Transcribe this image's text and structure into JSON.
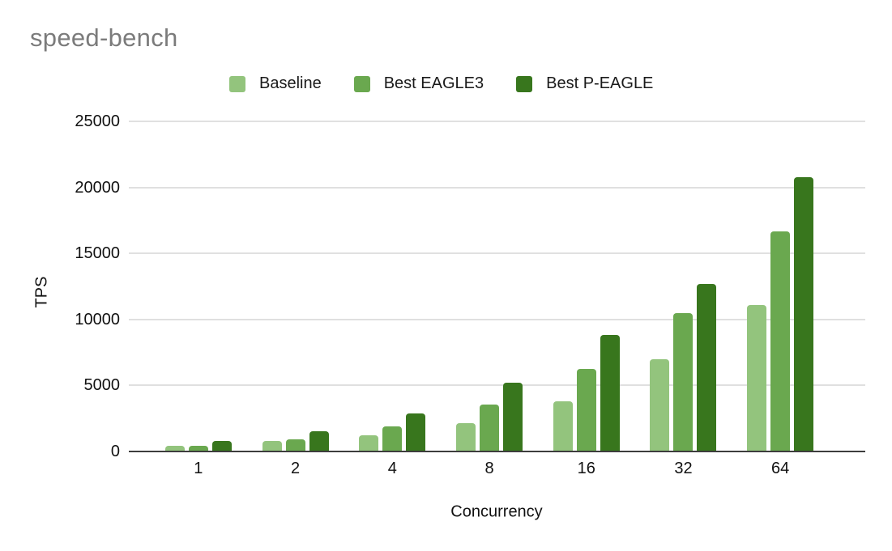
{
  "header": {
    "title": "speed-bench"
  },
  "chart_data": {
    "type": "bar",
    "title": "speed-bench",
    "xlabel": "Concurrency",
    "ylabel": "TPS",
    "categories": [
      "1",
      "2",
      "4",
      "8",
      "16",
      "32",
      "64"
    ],
    "series": [
      {
        "name": "Baseline",
        "color": "#93c47d",
        "values": [
          450,
          800,
          1200,
          2150,
          3800,
          7000,
          11100
        ]
      },
      {
        "name": "Best EAGLE3",
        "color": "#6aa84f",
        "values": [
          460,
          930,
          1870,
          3550,
          6250,
          10450,
          16650
        ]
      },
      {
        "name": "Best P-EAGLE",
        "color": "#38761d",
        "values": [
          780,
          1550,
          2900,
          5200,
          8850,
          12700,
          20800
        ]
      }
    ],
    "ylim": [
      0,
      25000
    ],
    "yticks": [
      0,
      5000,
      10000,
      15000,
      20000,
      25000
    ],
    "grid": true,
    "legend_position": "top"
  },
  "palette": {
    "title_text": "#7b7b7b",
    "axis_line": "#3d3d3d",
    "gridline": "#e0e0e0",
    "text": "#111111",
    "background": "#ffffff"
  }
}
